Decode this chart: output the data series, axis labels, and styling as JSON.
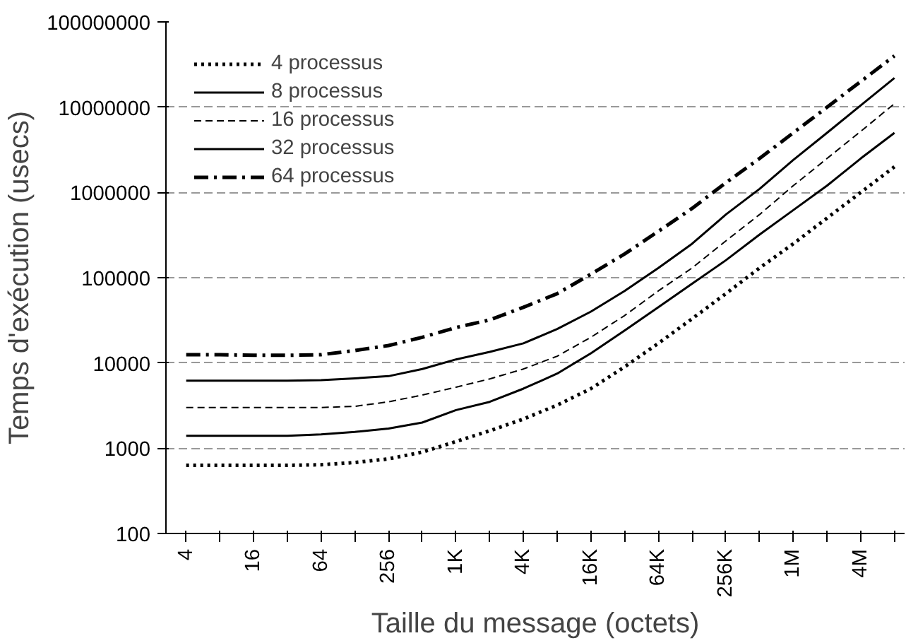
{
  "chart_data": {
    "type": "line",
    "xlabel": "Taille du message (octets)",
    "ylabel": "Temps d'exécution (usecs)",
    "categories": [
      "4",
      null,
      "16",
      null,
      "64",
      null,
      "256",
      null,
      "1K",
      null,
      "4K",
      null,
      "16K",
      null,
      "64K",
      null,
      "256K",
      null,
      "1M",
      null,
      "4M",
      null
    ],
    "series": [
      {
        "name": "4 processus",
        "color": "#000000",
        "line_style": "dotted",
        "values": [
          630,
          630,
          630,
          630,
          640,
          680,
          750,
          900,
          1200,
          1600,
          2200,
          3200,
          5000,
          9000,
          17000,
          33000,
          65000,
          130000,
          250000,
          500000,
          1000000,
          2000000
        ]
      },
      {
        "name": "8 processus",
        "color": "#000000",
        "line_style": "solid",
        "values": [
          1400,
          1400,
          1400,
          1400,
          1450,
          1550,
          1700,
          2000,
          2800,
          3500,
          5000,
          7500,
          13000,
          24000,
          45000,
          85000,
          160000,
          320000,
          620000,
          1200000,
          2500000,
          5000000
        ]
      },
      {
        "name": "16 processus",
        "color": "#000000",
        "line_style": "dashed",
        "values": [
          3000,
          3000,
          3000,
          3000,
          3000,
          3100,
          3500,
          4200,
          5200,
          6500,
          8500,
          12000,
          20000,
          36000,
          70000,
          130000,
          270000,
          550000,
          1200000,
          2500000,
          5200000,
          11000000
        ]
      },
      {
        "name": "32 processus",
        "color": "#000000",
        "line_style": "solid",
        "values": [
          6200,
          6200,
          6200,
          6200,
          6300,
          6600,
          7000,
          8500,
          11000,
          13500,
          17000,
          25000,
          40000,
          70000,
          130000,
          250000,
          550000,
          1100000,
          2400000,
          5000000,
          10500000,
          22000000
        ]
      },
      {
        "name": "64 processus",
        "color": "#000000",
        "line_style": "dashdot",
        "values": [
          12500,
          12500,
          12300,
          12300,
          12500,
          14000,
          16000,
          20000,
          26000,
          32000,
          45000,
          65000,
          110000,
          190000,
          350000,
          650000,
          1300000,
          2500000,
          5000000,
          10000000,
          20000000,
          40000000
        ]
      }
    ],
    "log": "y",
    "ylim": [
      100,
      100000000
    ],
    "yticks": [
      100,
      1000,
      10000,
      100000,
      1000000,
      10000000,
      100000000
    ],
    "grid": "y",
    "legend": "top left",
    "marker": "none"
  }
}
